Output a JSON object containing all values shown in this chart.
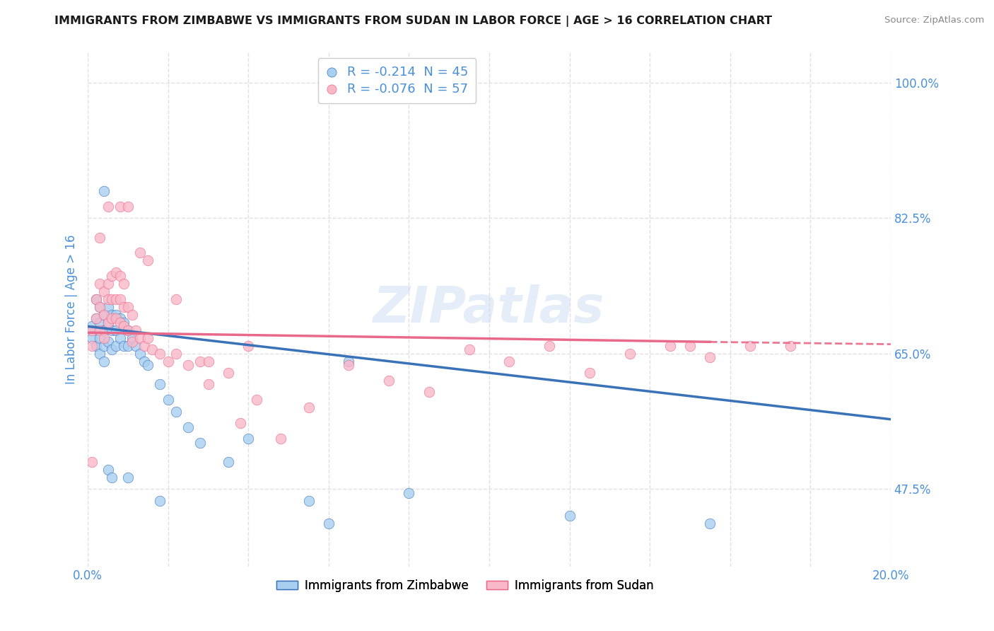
{
  "title": "IMMIGRANTS FROM ZIMBABWE VS IMMIGRANTS FROM SUDAN IN LABOR FORCE | AGE > 16 CORRELATION CHART",
  "source": "Source: ZipAtlas.com",
  "ylabel": "In Labor Force | Age > 16",
  "xlim": [
    0.0,
    0.2
  ],
  "ylim": [
    0.375,
    1.04
  ],
  "ytick_right_labels": [
    "47.5%",
    "65.0%",
    "82.5%",
    "100.0%"
  ],
  "ytick_right_values": [
    0.475,
    0.65,
    0.825,
    1.0
  ],
  "legend_R1": "-0.214",
  "legend_N1": "45",
  "legend_R2": "-0.076",
  "legend_N2": "57",
  "color_zimbabwe": "#a8cff0",
  "color_sudan": "#f9b8c8",
  "color_line_zimbabwe": "#3a72b8",
  "color_line_sudan": "#e8698a",
  "color_axis_blue": "#4a90d9",
  "background_color": "#ffffff",
  "grid_color": "#e0e0e0",
  "watermark": "ZIPatlas",
  "zim_line_x0": 0.0,
  "zim_line_y0": 0.685,
  "zim_line_x1": 0.2,
  "zim_line_y1": 0.565,
  "sud_line_x0": 0.0,
  "sud_line_y0": 0.677,
  "sud_line_xsolid": 0.155,
  "sud_line_ysolid": 0.665,
  "sud_line_x1": 0.2,
  "sud_line_y1": 0.662,
  "zimbabwe_x": [
    0.001,
    0.001,
    0.002,
    0.002,
    0.002,
    0.003,
    0.003,
    0.003,
    0.003,
    0.004,
    0.004,
    0.004,
    0.004,
    0.005,
    0.005,
    0.005,
    0.006,
    0.006,
    0.006,
    0.007,
    0.007,
    0.007,
    0.008,
    0.008,
    0.009,
    0.009,
    0.01,
    0.01,
    0.011,
    0.012,
    0.013,
    0.014,
    0.015,
    0.018,
    0.02,
    0.022,
    0.025,
    0.028,
    0.035,
    0.04,
    0.055,
    0.06,
    0.08,
    0.12,
    0.155
  ],
  "zimbabwe_y": [
    0.685,
    0.67,
    0.72,
    0.695,
    0.66,
    0.71,
    0.69,
    0.67,
    0.65,
    0.7,
    0.68,
    0.66,
    0.64,
    0.71,
    0.69,
    0.665,
    0.7,
    0.68,
    0.655,
    0.7,
    0.68,
    0.66,
    0.695,
    0.67,
    0.69,
    0.66,
    0.68,
    0.66,
    0.67,
    0.66,
    0.65,
    0.64,
    0.635,
    0.61,
    0.59,
    0.575,
    0.555,
    0.535,
    0.51,
    0.54,
    0.46,
    0.43,
    0.47,
    0.44,
    0.43
  ],
  "zimbabwe_outlier_x": [
    0.004,
    0.005,
    0.006,
    0.01,
    0.018,
    0.065
  ],
  "zimbabwe_outlier_y": [
    0.86,
    0.5,
    0.49,
    0.49,
    0.46,
    0.64
  ],
  "sudan_x": [
    0.001,
    0.001,
    0.002,
    0.002,
    0.003,
    0.003,
    0.003,
    0.004,
    0.004,
    0.004,
    0.005,
    0.005,
    0.005,
    0.006,
    0.006,
    0.006,
    0.007,
    0.007,
    0.007,
    0.008,
    0.008,
    0.008,
    0.009,
    0.009,
    0.009,
    0.01,
    0.01,
    0.011,
    0.011,
    0.012,
    0.013,
    0.014,
    0.015,
    0.016,
    0.018,
    0.02,
    0.022,
    0.025,
    0.028,
    0.03,
    0.035,
    0.038,
    0.042,
    0.048,
    0.055,
    0.065,
    0.075,
    0.085,
    0.095,
    0.105,
    0.115,
    0.125,
    0.135,
    0.145,
    0.155,
    0.165,
    0.175
  ],
  "sudan_y": [
    0.68,
    0.66,
    0.72,
    0.695,
    0.74,
    0.71,
    0.68,
    0.73,
    0.7,
    0.67,
    0.74,
    0.72,
    0.69,
    0.75,
    0.72,
    0.695,
    0.755,
    0.72,
    0.695,
    0.75,
    0.72,
    0.69,
    0.74,
    0.71,
    0.685,
    0.71,
    0.68,
    0.7,
    0.665,
    0.68,
    0.67,
    0.66,
    0.67,
    0.655,
    0.65,
    0.64,
    0.65,
    0.635,
    0.64,
    0.61,
    0.625,
    0.56,
    0.59,
    0.54,
    0.58,
    0.635,
    0.615,
    0.6,
    0.655,
    0.64,
    0.66,
    0.625,
    0.65,
    0.66,
    0.645,
    0.66,
    0.66
  ],
  "sudan_outlier_x": [
    0.001,
    0.003,
    0.005,
    0.008,
    0.01,
    0.013,
    0.015,
    0.022,
    0.03,
    0.04,
    0.15
  ],
  "sudan_outlier_y": [
    0.51,
    0.8,
    0.84,
    0.84,
    0.84,
    0.78,
    0.77,
    0.72,
    0.64,
    0.66,
    0.66
  ]
}
